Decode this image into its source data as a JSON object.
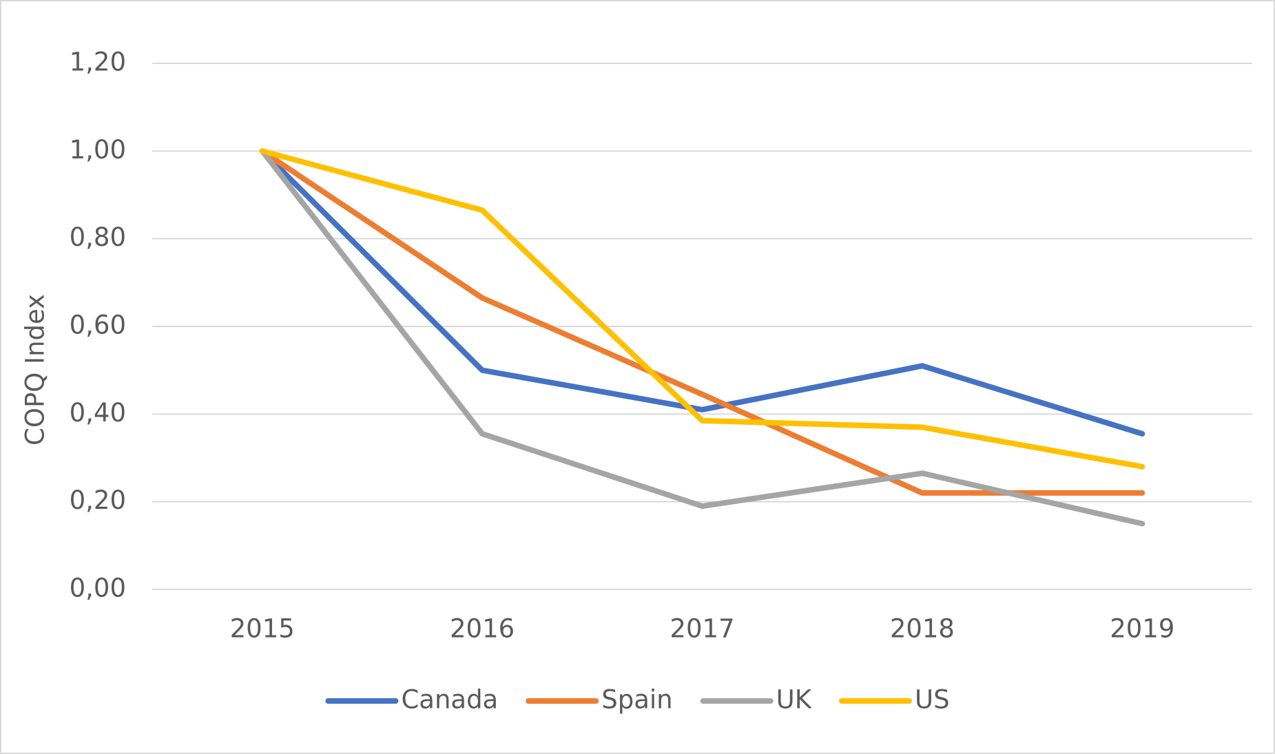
{
  "chart_data": {
    "type": "line",
    "y_label": "COPQ Index",
    "categories": [
      "2015",
      "2016",
      "2017",
      "2018",
      "2019"
    ],
    "series": [
      {
        "name": "Canada",
        "color": "#4472c4",
        "values": [
          1.0,
          0.5,
          0.41,
          0.51,
          0.355
        ]
      },
      {
        "name": "Spain",
        "color": "#ed7d31",
        "values": [
          1.0,
          0.665,
          0.445,
          0.22,
          0.22
        ]
      },
      {
        "name": "UK",
        "color": "#a5a5a5",
        "values": [
          1.0,
          0.355,
          0.19,
          0.265,
          0.15
        ]
      },
      {
        "name": "US",
        "color": "#ffc000",
        "values": [
          1.0,
          0.865,
          0.385,
          0.37,
          0.28
        ]
      }
    ],
    "ylim": [
      0,
      1.2
    ],
    "yticks": [
      {
        "value": 0,
        "label": "0,00"
      },
      {
        "value": 0.2,
        "label": "0,20"
      },
      {
        "value": 0.4,
        "label": "0,40"
      },
      {
        "value": 0.6,
        "label": "0,60"
      },
      {
        "value": 0.8,
        "label": "0,80"
      },
      {
        "value": 1.0,
        "label": "1,00"
      },
      {
        "value": 1.2,
        "label": "1,20"
      }
    ],
    "grid": true,
    "legend": "bottom"
  }
}
